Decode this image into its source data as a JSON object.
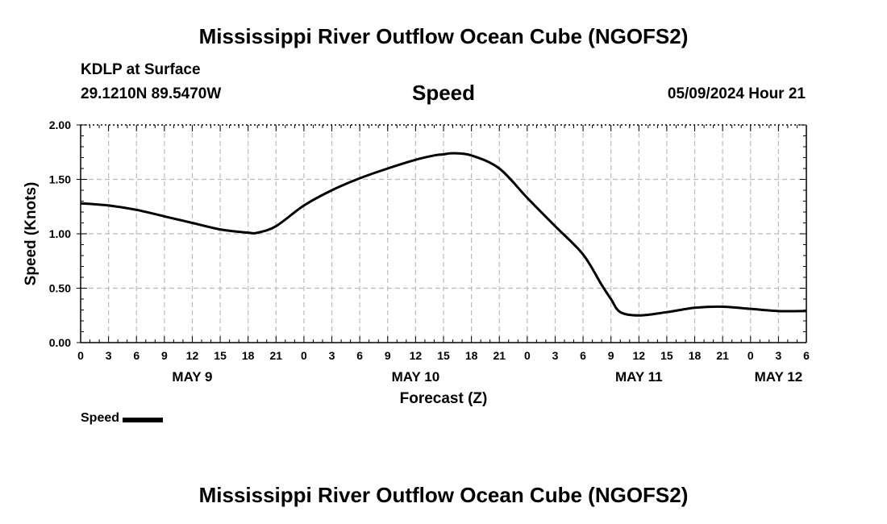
{
  "header": {
    "title": "Mississippi River Outflow Ocean Cube (NGOFS2)",
    "station": "KDLP at Surface",
    "coords": "29.1210N  89.5470W",
    "variable": "Speed",
    "datetime": "05/09/2024 Hour 21"
  },
  "footer": {
    "title": "Mississippi River Outflow Ocean Cube (NGOFS2)"
  },
  "legend": {
    "label": "Speed"
  },
  "chart_data": {
    "type": "line",
    "title": "Speed",
    "xlabel": "Forecast (Z)",
    "ylabel": "Speed (Knots)",
    "ylim": [
      0,
      2.0
    ],
    "xlim": [
      0,
      78
    ],
    "x_unit": "hours from May 9 00Z",
    "yticks": [
      "0.00",
      "0.50",
      "1.00",
      "1.50",
      "2.00"
    ],
    "ytick_values": [
      0,
      0.5,
      1.0,
      1.5,
      2.0
    ],
    "xtick_hours": [
      0,
      3,
      6,
      9,
      12,
      15,
      18,
      21,
      24,
      27,
      30,
      33,
      36,
      39,
      42,
      45,
      48,
      51,
      54,
      57,
      60,
      63,
      66,
      69,
      72,
      75,
      78
    ],
    "xtick_labels": [
      "0",
      "3",
      "6",
      "9",
      "12",
      "15",
      "18",
      "21",
      "0",
      "3",
      "6",
      "9",
      "12",
      "15",
      "18",
      "21",
      "0",
      "3",
      "6",
      "9",
      "12",
      "15",
      "18",
      "21",
      "0",
      "3",
      "6"
    ],
    "date_labels": [
      {
        "label": "MAY 9",
        "hour": 12
      },
      {
        "label": "MAY 10",
        "hour": 36
      },
      {
        "label": "MAY 11",
        "hour": 60
      },
      {
        "label": "MAY 12",
        "hour": 75
      }
    ],
    "grid": true,
    "series": [
      {
        "name": "Speed",
        "color": "#000000",
        "x": [
          0,
          3,
          6,
          9,
          12,
          15,
          18,
          19,
          21,
          24,
          27,
          30,
          33,
          36,
          38,
          39,
          40,
          42,
          45,
          48,
          51,
          54,
          56,
          57,
          58,
          60,
          63,
          66,
          69,
          72,
          75,
          78
        ],
        "values": [
          1.28,
          1.26,
          1.22,
          1.16,
          1.1,
          1.04,
          1.01,
          1.01,
          1.07,
          1.26,
          1.4,
          1.51,
          1.6,
          1.68,
          1.72,
          1.73,
          1.74,
          1.72,
          1.6,
          1.33,
          1.07,
          0.81,
          0.53,
          0.4,
          0.28,
          0.25,
          0.28,
          0.32,
          0.33,
          0.31,
          0.29,
          0.29
        ]
      }
    ]
  }
}
